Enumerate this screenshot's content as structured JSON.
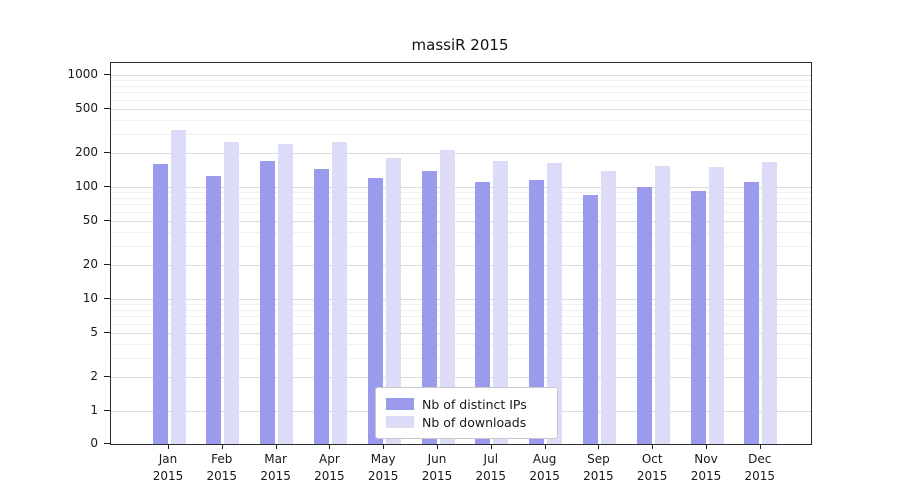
{
  "title": "massiR 2015",
  "legend": {
    "items": [
      {
        "label": "Nb of distinct IPs",
        "color": "#9b9bee"
      },
      {
        "label": "Nb of downloads",
        "color": "#dcdcf8"
      }
    ]
  },
  "chart_data": {
    "type": "bar",
    "title": "massiR 2015",
    "categories": [
      "Jan",
      "Feb",
      "Mar",
      "Apr",
      "May",
      "Jun",
      "Jul",
      "Aug",
      "Sep",
      "Oct",
      "Nov",
      "Dec"
    ],
    "year": "2015",
    "series": [
      {
        "name": "Nb of distinct IPs",
        "color": "#9b9bee",
        "values": [
          160,
          125,
          170,
          145,
          120,
          140,
          110,
          115,
          85,
          100,
          93,
          110
        ]
      },
      {
        "name": "Nb of downloads",
        "color": "#dcdcf8",
        "values": [
          320,
          250,
          240,
          250,
          180,
          215,
          170,
          165,
          140,
          155,
          150,
          168
        ]
      }
    ],
    "yticks": [
      0,
      1,
      2,
      5,
      10,
      20,
      50,
      100,
      200,
      500,
      1000
    ],
    "yscale": "log",
    "xlabel": "",
    "ylabel": "",
    "grid": true,
    "legend_position": "lower center",
    "ylim": [
      0,
      1300
    ]
  }
}
